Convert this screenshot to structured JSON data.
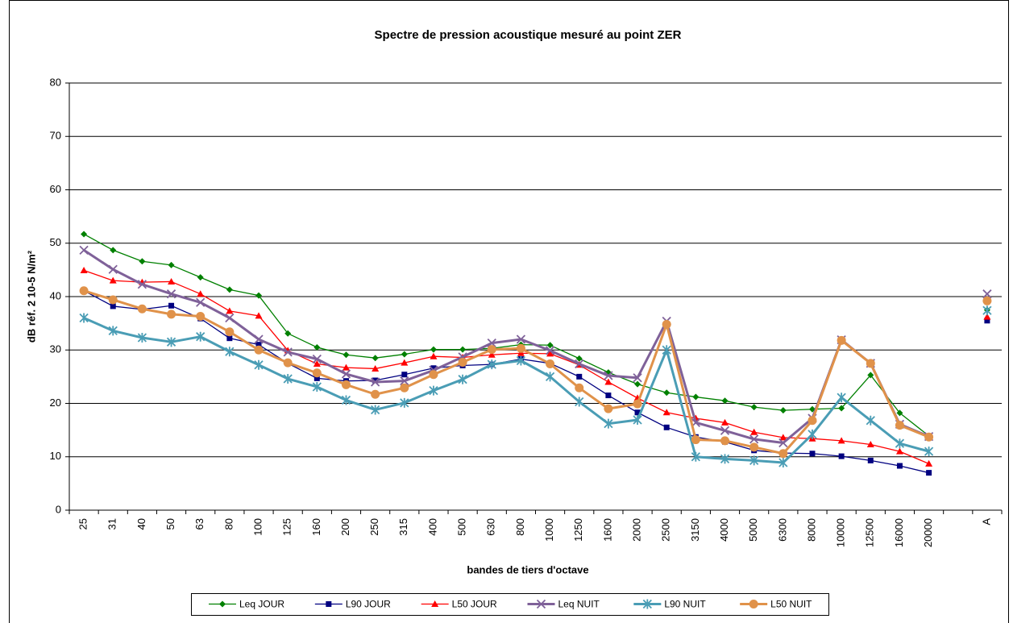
{
  "chart_data": {
    "type": "line",
    "title": "Spectre de pression acoustique mesuré au point ZER",
    "x_label": "bandes de tiers d'octave",
    "y_label": "dB réf. 2 10-5 N/m²",
    "categories": [
      "25",
      "31",
      "40",
      "50",
      "63",
      "80",
      "100",
      "125",
      "160",
      "200",
      "250",
      "315",
      "400",
      "500",
      "630",
      "800",
      "1000",
      "1250",
      "1600",
      "2000",
      "2500",
      "3150",
      "4000",
      "5000",
      "6300",
      "8000",
      "10000",
      "12500",
      "16000",
      "20000",
      null,
      "A"
    ],
    "ylim": [
      0,
      80
    ],
    "yticks": [
      0,
      10,
      20,
      30,
      40,
      50,
      60,
      70,
      80
    ],
    "grid": true,
    "legend": "bottom",
    "series": [
      {
        "name": "Leq JOUR",
        "color": "#008000",
        "marker": "diamond",
        "line_width": 1.3,
        "values": [
          51.7,
          48.7,
          46.6,
          45.9,
          43.6,
          41.3,
          40.2,
          33.1,
          30.5,
          29.1,
          28.5,
          29.2,
          30.1,
          30.1,
          30.3,
          31.0,
          30.9,
          28.4,
          25.8,
          23.6,
          22.0,
          21.2,
          20.5,
          19.3,
          18.7,
          18.9,
          19.1,
          25.3,
          18.2,
          13.9,
          null,
          37.5
        ]
      },
      {
        "name": "L90 JOUR",
        "color": "#000080",
        "marker": "square",
        "line_width": 1.3,
        "values": [
          41.1,
          38.2,
          37.6,
          38.3,
          35.9,
          32.2,
          31.0,
          27.5,
          24.7,
          24.2,
          24.3,
          25.4,
          26.6,
          27.1,
          27.3,
          28.3,
          27.5,
          25.0,
          21.5,
          18.3,
          15.5,
          13.7,
          12.8,
          11.2,
          10.7,
          10.6,
          10.1,
          9.3,
          8.3,
          7.0,
          null,
          35.5
        ]
      },
      {
        "name": "L50 JOUR",
        "color": "#ff0000",
        "marker": "triangle",
        "line_width": 1.3,
        "values": [
          44.9,
          43.0,
          42.7,
          42.8,
          40.5,
          37.3,
          36.4,
          29.9,
          27.4,
          26.7,
          26.5,
          27.6,
          28.8,
          28.6,
          29.1,
          29.4,
          29.3,
          27.2,
          24.0,
          21.0,
          18.3,
          17.2,
          16.4,
          14.6,
          13.6,
          13.4,
          13.0,
          12.3,
          11.0,
          8.7,
          null,
          36.2
        ]
      },
      {
        "name": "Leq NUIT",
        "color": "#7f6199",
        "marker": "x",
        "line_width": 3,
        "values": [
          48.7,
          45.1,
          42.3,
          40.5,
          38.9,
          36.0,
          32.0,
          29.6,
          28.3,
          25.5,
          24.0,
          24.2,
          26.2,
          28.7,
          31.3,
          32.0,
          29.9,
          27.4,
          25.2,
          24.8,
          35.4,
          16.4,
          14.9,
          13.3,
          12.6,
          17.2,
          31.9,
          27.5,
          16.1,
          13.8,
          null,
          40.5
        ]
      },
      {
        "name": "L90 NUIT",
        "color": "#4a9db5",
        "marker": "star",
        "line_width": 3,
        "values": [
          36.0,
          33.6,
          32.3,
          31.5,
          32.5,
          29.7,
          27.2,
          24.6,
          23.1,
          20.6,
          18.8,
          20.1,
          22.4,
          24.5,
          27.3,
          28.0,
          25.0,
          20.3,
          16.2,
          16.9,
          30.0,
          10.0,
          9.6,
          9.3,
          8.9,
          14.2,
          21.1,
          16.8,
          12.5,
          11.0,
          null,
          37.4
        ]
      },
      {
        "name": "L50 NUIT",
        "color": "#e0924a",
        "marker": "circle",
        "line_width": 3,
        "values": [
          41.1,
          39.4,
          37.7,
          36.7,
          36.3,
          33.4,
          30.0,
          27.6,
          25.7,
          23.5,
          21.7,
          22.9,
          25.4,
          27.7,
          30.1,
          30.3,
          27.4,
          22.9,
          19.0,
          19.9,
          34.8,
          13.2,
          13.0,
          11.8,
          10.6,
          16.8,
          31.8,
          27.5,
          15.9,
          13.7,
          null,
          39.2
        ]
      }
    ]
  }
}
